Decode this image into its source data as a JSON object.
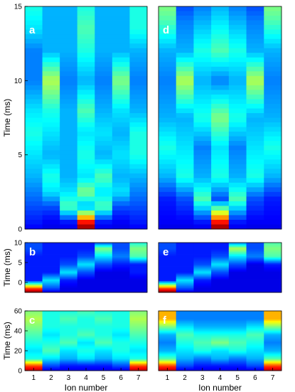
{
  "chart_data": [
    {
      "type": "heatmap",
      "panel_label": "a",
      "xlabel": "",
      "ylabel": "Time (ms)",
      "x_ticks": [],
      "y_ticks": [
        "0",
        "5",
        "10",
        "15"
      ],
      "ylim": [
        0,
        15
      ],
      "ion_numbers": [
        1,
        2,
        3,
        4,
        5,
        6,
        7
      ],
      "colormap": "jet",
      "grid": false,
      "populations": [
        {
          "t": 0.0,
          "values": [
            0.12,
            0.1,
            0.1,
            1.0,
            0.1,
            0.1,
            0.12
          ]
        },
        {
          "t": 0.5,
          "values": [
            0.15,
            0.12,
            0.15,
            0.85,
            0.15,
            0.12,
            0.15
          ]
        },
        {
          "t": 1.5,
          "values": [
            0.2,
            0.2,
            0.45,
            0.3,
            0.45,
            0.2,
            0.2
          ]
        },
        {
          "t": 2.5,
          "values": [
            0.25,
            0.35,
            0.35,
            0.5,
            0.35,
            0.35,
            0.25
          ]
        },
        {
          "t": 3.5,
          "values": [
            0.3,
            0.4,
            0.3,
            0.35,
            0.45,
            0.3,
            0.3
          ]
        },
        {
          "t": 5.0,
          "values": [
            0.35,
            0.3,
            0.3,
            0.4,
            0.3,
            0.35,
            0.4
          ]
        },
        {
          "t": 6.5,
          "values": [
            0.4,
            0.35,
            0.3,
            0.35,
            0.35,
            0.3,
            0.4
          ]
        },
        {
          "t": 8.0,
          "values": [
            0.35,
            0.4,
            0.3,
            0.45,
            0.3,
            0.35,
            0.3
          ]
        },
        {
          "t": 10.0,
          "values": [
            0.25,
            0.55,
            0.25,
            0.3,
            0.25,
            0.5,
            0.25
          ]
        },
        {
          "t": 12.0,
          "values": [
            0.25,
            0.3,
            0.3,
            0.4,
            0.3,
            0.3,
            0.3
          ]
        },
        {
          "t": 13.5,
          "values": [
            0.35,
            0.3,
            0.3,
            0.45,
            0.3,
            0.3,
            0.4
          ]
        },
        {
          "t": 15.0,
          "values": [
            0.4,
            0.3,
            0.3,
            0.4,
            0.3,
            0.3,
            0.4
          ]
        }
      ]
    },
    {
      "type": "heatmap",
      "panel_label": "d",
      "xlabel": "",
      "ylabel": "",
      "x_ticks": [],
      "y_ticks": [],
      "ylim": [
        0,
        15
      ],
      "ion_numbers": [
        1,
        2,
        3,
        4,
        5,
        6,
        7
      ],
      "colormap": "jet",
      "grid": false,
      "populations": [
        {
          "t": 0.0,
          "values": [
            0.1,
            0.1,
            0.1,
            1.0,
            0.1,
            0.1,
            0.1
          ]
        },
        {
          "t": 0.5,
          "values": [
            0.12,
            0.12,
            0.15,
            0.85,
            0.15,
            0.12,
            0.12
          ]
        },
        {
          "t": 2.0,
          "values": [
            0.15,
            0.2,
            0.45,
            0.2,
            0.45,
            0.2,
            0.15
          ]
        },
        {
          "t": 3.5,
          "values": [
            0.3,
            0.4,
            0.3,
            0.4,
            0.3,
            0.4,
            0.3
          ]
        },
        {
          "t": 5.5,
          "values": [
            0.4,
            0.35,
            0.25,
            0.35,
            0.25,
            0.35,
            0.4
          ]
        },
        {
          "t": 7.5,
          "values": [
            0.3,
            0.3,
            0.4,
            0.5,
            0.4,
            0.3,
            0.3
          ]
        },
        {
          "t": 10.0,
          "values": [
            0.25,
            0.55,
            0.3,
            0.25,
            0.3,
            0.55,
            0.25
          ]
        },
        {
          "t": 12.0,
          "values": [
            0.3,
            0.3,
            0.4,
            0.45,
            0.4,
            0.3,
            0.3
          ]
        },
        {
          "t": 14.0,
          "values": [
            0.45,
            0.25,
            0.3,
            0.35,
            0.3,
            0.25,
            0.45
          ]
        },
        {
          "t": 15.0,
          "values": [
            0.5,
            0.2,
            0.25,
            0.3,
            0.25,
            0.2,
            0.5
          ]
        }
      ]
    },
    {
      "type": "heatmap",
      "panel_label": "b",
      "xlabel": "",
      "ylabel": "Time (ms)",
      "x_ticks": [],
      "y_ticks": [
        "0",
        "5",
        "10"
      ],
      "ylim": [
        -2.5,
        10
      ],
      "ion_numbers": [
        1,
        2,
        3,
        4,
        5,
        6,
        7
      ],
      "colormap": "jet",
      "grid": false,
      "populations": [
        {
          "t": -2.5,
          "values": [
            1.0,
            0.1,
            0.1,
            0.1,
            0.1,
            0.1,
            0.1
          ]
        },
        {
          "t": -1.5,
          "values": [
            0.8,
            0.2,
            0.1,
            0.1,
            0.1,
            0.1,
            0.1
          ]
        },
        {
          "t": 0.5,
          "values": [
            0.15,
            0.35,
            0.15,
            0.1,
            0.1,
            0.1,
            0.1
          ]
        },
        {
          "t": 2.5,
          "values": [
            0.15,
            0.15,
            0.35,
            0.2,
            0.1,
            0.1,
            0.15
          ]
        },
        {
          "t": 4.5,
          "values": [
            0.15,
            0.15,
            0.2,
            0.35,
            0.2,
            0.15,
            0.15
          ]
        },
        {
          "t": 6.5,
          "values": [
            0.15,
            0.15,
            0.15,
            0.2,
            0.35,
            0.25,
            0.45
          ]
        },
        {
          "t": 8.5,
          "values": [
            0.2,
            0.15,
            0.15,
            0.15,
            0.5,
            0.2,
            0.5
          ]
        },
        {
          "t": 10.0,
          "values": [
            0.2,
            0.15,
            0.15,
            0.15,
            0.2,
            0.2,
            0.4
          ]
        }
      ]
    },
    {
      "type": "heatmap",
      "panel_label": "e",
      "xlabel": "",
      "ylabel": "",
      "x_ticks": [],
      "y_ticks": [],
      "ylim": [
        -2.5,
        10
      ],
      "ion_numbers": [
        1,
        2,
        3,
        4,
        5,
        6,
        7
      ],
      "colormap": "jet",
      "grid": false,
      "populations": [
        {
          "t": -2.5,
          "values": [
            1.0,
            0.1,
            0.1,
            0.1,
            0.1,
            0.1,
            0.1
          ]
        },
        {
          "t": -1.5,
          "values": [
            0.8,
            0.2,
            0.1,
            0.1,
            0.1,
            0.1,
            0.1
          ]
        },
        {
          "t": 0.5,
          "values": [
            0.15,
            0.35,
            0.15,
            0.1,
            0.1,
            0.1,
            0.1
          ]
        },
        {
          "t": 2.5,
          "values": [
            0.15,
            0.15,
            0.35,
            0.2,
            0.1,
            0.1,
            0.1
          ]
        },
        {
          "t": 4.5,
          "values": [
            0.15,
            0.15,
            0.2,
            0.35,
            0.2,
            0.1,
            0.15
          ]
        },
        {
          "t": 6.5,
          "values": [
            0.15,
            0.15,
            0.15,
            0.2,
            0.35,
            0.25,
            0.45
          ]
        },
        {
          "t": 8.5,
          "values": [
            0.2,
            0.15,
            0.15,
            0.15,
            0.55,
            0.2,
            0.5
          ]
        },
        {
          "t": 10.0,
          "values": [
            0.2,
            0.15,
            0.15,
            0.15,
            0.25,
            0.2,
            0.45
          ]
        }
      ]
    },
    {
      "type": "heatmap",
      "panel_label": "c",
      "xlabel": "Ion number",
      "ylabel": "Time (ms)",
      "x_ticks": [
        "1",
        "2",
        "3",
        "4",
        "5",
        "6",
        "7"
      ],
      "y_ticks": [
        "0",
        "20",
        "40",
        "60"
      ],
      "ylim": [
        0,
        60
      ],
      "ion_numbers": [
        1,
        2,
        3,
        4,
        5,
        6,
        7
      ],
      "colormap": "jet",
      "grid": false,
      "populations": [
        {
          "t": 0,
          "values": [
            0.95,
            0.1,
            0.1,
            0.1,
            0.1,
            0.1,
            0.95
          ]
        },
        {
          "t": 5,
          "values": [
            0.8,
            0.2,
            0.15,
            0.15,
            0.15,
            0.2,
            0.8
          ]
        },
        {
          "t": 12,
          "values": [
            0.4,
            0.35,
            0.3,
            0.35,
            0.3,
            0.35,
            0.4
          ]
        },
        {
          "t": 20,
          "values": [
            0.35,
            0.45,
            0.35,
            0.4,
            0.35,
            0.4,
            0.35
          ]
        },
        {
          "t": 28,
          "values": [
            0.4,
            0.4,
            0.45,
            0.35,
            0.45,
            0.4,
            0.4
          ]
        },
        {
          "t": 36,
          "values": [
            0.45,
            0.35,
            0.4,
            0.45,
            0.4,
            0.35,
            0.45
          ]
        },
        {
          "t": 44,
          "values": [
            0.5,
            0.4,
            0.4,
            0.4,
            0.4,
            0.4,
            0.5
          ]
        },
        {
          "t": 52,
          "values": [
            0.55,
            0.4,
            0.45,
            0.4,
            0.45,
            0.4,
            0.55
          ]
        },
        {
          "t": 60,
          "values": [
            0.5,
            0.4,
            0.4,
            0.45,
            0.4,
            0.4,
            0.5
          ]
        }
      ]
    },
    {
      "type": "heatmap",
      "panel_label": "f",
      "xlabel": "Ion number",
      "ylabel": "",
      "x_ticks": [
        "1",
        "2",
        "3",
        "4",
        "5",
        "6",
        "7"
      ],
      "y_ticks": [],
      "ylim": [
        0,
        60
      ],
      "ion_numbers": [
        1,
        2,
        3,
        4,
        5,
        6,
        7
      ],
      "colormap": "jet",
      "grid": false,
      "populations": [
        {
          "t": 0,
          "values": [
            0.95,
            0.1,
            0.1,
            0.1,
            0.1,
            0.1,
            0.95
          ]
        },
        {
          "t": 5,
          "values": [
            0.8,
            0.2,
            0.15,
            0.15,
            0.15,
            0.2,
            0.8
          ]
        },
        {
          "t": 12,
          "values": [
            0.45,
            0.3,
            0.25,
            0.3,
            0.25,
            0.3,
            0.45
          ]
        },
        {
          "t": 20,
          "values": [
            0.3,
            0.35,
            0.4,
            0.35,
            0.4,
            0.35,
            0.3
          ]
        },
        {
          "t": 28,
          "values": [
            0.25,
            0.4,
            0.45,
            0.5,
            0.45,
            0.4,
            0.25
          ]
        },
        {
          "t": 36,
          "values": [
            0.3,
            0.45,
            0.4,
            0.4,
            0.4,
            0.45,
            0.3
          ]
        },
        {
          "t": 44,
          "values": [
            0.5,
            0.35,
            0.3,
            0.3,
            0.3,
            0.35,
            0.5
          ]
        },
        {
          "t": 52,
          "values": [
            0.7,
            0.25,
            0.25,
            0.25,
            0.25,
            0.25,
            0.7
          ]
        },
        {
          "t": 60,
          "values": [
            0.7,
            0.25,
            0.25,
            0.25,
            0.25,
            0.25,
            0.7
          ]
        }
      ]
    }
  ]
}
